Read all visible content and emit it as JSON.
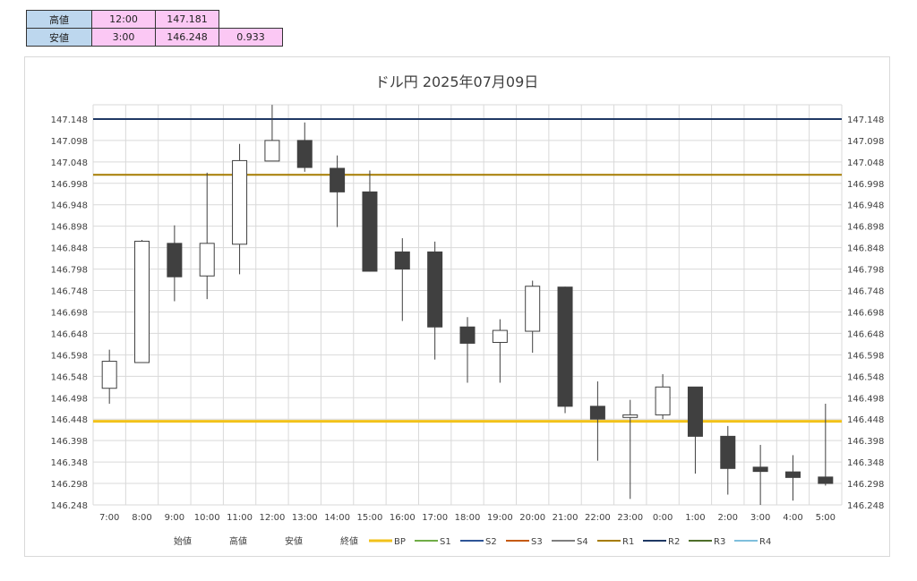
{
  "info_table": {
    "rows": [
      {
        "label": "高値",
        "time": "12:00",
        "value": "147.181",
        "range": ""
      },
      {
        "label": "安値",
        "time": "3:00",
        "value": "146.248",
        "range": "0.933"
      }
    ]
  },
  "chart_data": {
    "type": "candlestick",
    "title": "ドル円 2025年07月09日",
    "categories": [
      "7:00",
      "8:00",
      "9:00",
      "10:00",
      "11:00",
      "12:00",
      "13:00",
      "14:00",
      "15:00",
      "16:00",
      "17:00",
      "18:00",
      "19:00",
      "20:00",
      "21:00",
      "22:00",
      "23:00",
      "0:00",
      "1:00",
      "2:00",
      "3:00",
      "4:00",
      "5:00"
    ],
    "open": [
      146.52,
      146.58,
      146.858,
      146.782,
      146.856,
      147.05,
      147.098,
      147.033,
      146.978,
      146.838,
      146.838,
      146.663,
      146.627,
      146.653,
      146.756,
      146.478,
      146.452,
      146.458,
      146.523,
      146.408,
      146.336,
      146.325,
      146.313
    ],
    "high": [
      146.61,
      146.866,
      146.9,
      147.023,
      147.09,
      147.181,
      147.14,
      147.063,
      147.028,
      146.87,
      146.862,
      146.686,
      146.681,
      146.771,
      146.757,
      146.536,
      146.493,
      146.553,
      146.523,
      146.432,
      146.388,
      146.364,
      146.484
    ],
    "low": [
      146.484,
      146.58,
      146.723,
      146.728,
      146.786,
      147.05,
      147.025,
      146.896,
      146.792,
      146.677,
      146.587,
      146.533,
      146.533,
      146.603,
      146.462,
      146.351,
      146.262,
      146.448,
      146.321,
      146.272,
      146.248,
      146.258,
      146.293
    ],
    "close": [
      146.583,
      146.863,
      146.78,
      146.858,
      147.051,
      147.098,
      147.035,
      146.978,
      146.793,
      146.798,
      146.663,
      146.625,
      146.655,
      146.758,
      146.478,
      146.448,
      146.458,
      146.523,
      146.408,
      146.333,
      146.326,
      146.312,
      146.298
    ],
    "y_ticks": [
      "146.248",
      "146.298",
      "146.348",
      "146.398",
      "146.448",
      "146.498",
      "146.548",
      "146.598",
      "146.648",
      "146.698",
      "146.748",
      "146.798",
      "146.848",
      "146.898",
      "146.948",
      "146.998",
      "147.048",
      "147.098",
      "147.148"
    ],
    "ylim": [
      146.248,
      147.181
    ],
    "grid": true,
    "up_color": "#ffffff",
    "down_color": "#404040",
    "lines": [
      {
        "name": "R2",
        "value": 147.148,
        "color": "#1f3864"
      },
      {
        "name": "R1",
        "value": 147.018,
        "color": "#a67c00"
      },
      {
        "name": "BP",
        "value": 146.443,
        "color": "#f2c21b"
      }
    ],
    "legend": {
      "position": "bottom",
      "text_items": [
        "始値",
        "高値",
        "安値",
        "終値"
      ],
      "line_items": [
        {
          "name": "BP",
          "color": "#f2c21b"
        },
        {
          "name": "S1",
          "color": "#70ad47"
        },
        {
          "name": "S2",
          "color": "#2e5597"
        },
        {
          "name": "S3",
          "color": "#c55a11"
        },
        {
          "name": "S4",
          "color": "#7f7f7f"
        },
        {
          "name": "R1",
          "color": "#a67c00"
        },
        {
          "name": "R2",
          "color": "#1f3864"
        },
        {
          "name": "R3",
          "color": "#4e6e2a"
        },
        {
          "name": "R4",
          "color": "#7fbfdc"
        }
      ]
    }
  }
}
